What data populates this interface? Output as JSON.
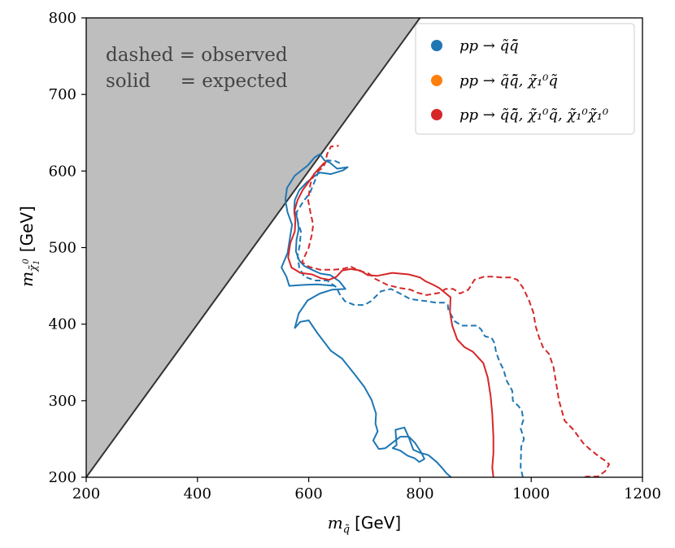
{
  "chart_data": {
    "type": "line",
    "x_axis": {
      "label_symbol": "m",
      "label_sub": "q̃",
      "label_unit": "[GeV]",
      "range": [
        200,
        1200
      ],
      "ticks": [
        200,
        400,
        600,
        800,
        1000,
        1200
      ],
      "tick_labels": [
        "200",
        "400",
        "600",
        "800",
        "1000",
        "1200"
      ]
    },
    "y_axis": {
      "label_symbol": "m",
      "label_sub": "χ̃",
      "label_sub_sub": "1",
      "label_sup": "0",
      "label_unit": "[GeV]",
      "range": [
        200,
        800
      ],
      "ticks": [
        200,
        300,
        400,
        500,
        600,
        700,
        800
      ],
      "tick_labels": [
        "200",
        "300",
        "400",
        "500",
        "600",
        "700",
        "800"
      ]
    },
    "excluded_region": {
      "description": "kinematically forbidden region above m_neutralino = m_squark line",
      "boundary": [
        [
          200,
          200
        ],
        [
          800,
          800
        ]
      ],
      "fill": "#bebebe",
      "edge": "#333333"
    },
    "annotations": [
      {
        "text": "dashed = observed"
      },
      {
        "text": "solid     = expected"
      }
    ],
    "colors": {
      "blue": "#1f77b4",
      "orange": "#ff7f0e",
      "red": "#d62728"
    },
    "legend": [
      {
        "label": "pp → q̃q̃̄",
        "color": "#1f77b4"
      },
      {
        "label": "pp → q̃q̃̄, χ̃₁⁰q̃",
        "color": "#ff7f0e"
      },
      {
        "label": "pp → q̃q̃̄, χ̃₁⁰q̃, χ̃₁⁰χ̃₁⁰",
        "color": "#d62728"
      }
    ],
    "series": [
      {
        "name": "blue solid (expected)",
        "color": "#1f77b4",
        "style": "solid",
        "points": [
          [
            648,
            450
          ],
          [
            615,
            452
          ],
          [
            585,
            451
          ],
          [
            565,
            450
          ],
          [
            560,
            462
          ],
          [
            551,
            474
          ],
          [
            562,
            493
          ],
          [
            566,
            511
          ],
          [
            570,
            530
          ],
          [
            562,
            546
          ],
          [
            558,
            562
          ],
          [
            561,
            578
          ],
          [
            575,
            594
          ],
          [
            598,
            607
          ],
          [
            611,
            618
          ],
          [
            620,
            622
          ],
          [
            628,
            614
          ],
          [
            638,
            611
          ],
          [
            651,
            603
          ],
          [
            670,
            605
          ],
          [
            662,
            601
          ],
          [
            640,
            596
          ],
          [
            620,
            598
          ],
          [
            610,
            593
          ],
          [
            596,
            585
          ],
          [
            583,
            575
          ],
          [
            575,
            562
          ],
          [
            574,
            549
          ],
          [
            580,
            537
          ],
          [
            582,
            524
          ],
          [
            578,
            510
          ],
          [
            577,
            495
          ],
          [
            583,
            483
          ],
          [
            592,
            476
          ],
          [
            606,
            471
          ],
          [
            621,
            466
          ],
          [
            639,
            464
          ],
          [
            655,
            456
          ],
          [
            666,
            446
          ],
          [
            642,
            445
          ],
          [
            620,
            440
          ],
          [
            598,
            431
          ],
          [
            582,
            414
          ],
          [
            575,
            395
          ],
          [
            585,
            403
          ],
          [
            600,
            405
          ],
          [
            616,
            388
          ],
          [
            640,
            365
          ],
          [
            660,
            355
          ],
          [
            683,
            334
          ],
          [
            700,
            318
          ],
          [
            713,
            301
          ],
          [
            721,
            283
          ],
          [
            720,
            270
          ],
          [
            724,
            260
          ],
          [
            716,
            248
          ],
          [
            726,
            237
          ],
          [
            738,
            238
          ],
          [
            754,
            247
          ],
          [
            765,
            253
          ],
          [
            780,
            253
          ],
          [
            791,
            245
          ],
          [
            801,
            234
          ],
          [
            808,
            224
          ],
          [
            799,
            220
          ],
          [
            790,
            225
          ],
          [
            778,
            228
          ],
          [
            764,
            235
          ],
          [
            751,
            238
          ],
          [
            758,
            242
          ],
          [
            756,
            262
          ],
          [
            772,
            265
          ],
          [
            780,
            252
          ],
          [
            788,
            236
          ],
          [
            800,
            232
          ],
          [
            815,
            229
          ],
          [
            830,
            220
          ],
          [
            840,
            212
          ],
          [
            848,
            205
          ],
          [
            856,
            200
          ]
        ]
      },
      {
        "name": "blue dashed (observed)",
        "color": "#1f77b4",
        "style": "dashed",
        "points": [
          [
            985,
            200
          ],
          [
            981,
            213
          ],
          [
            982,
            240
          ],
          [
            987,
            250
          ],
          [
            981,
            264
          ],
          [
            986,
            275
          ],
          [
            983,
            287
          ],
          [
            977,
            293
          ],
          [
            967,
            300
          ],
          [
            966,
            313
          ],
          [
            956,
            326
          ],
          [
            950,
            341
          ],
          [
            943,
            351
          ],
          [
            937,
            363
          ],
          [
            934,
            375
          ],
          [
            929,
            382
          ],
          [
            917,
            384
          ],
          [
            910,
            393
          ],
          [
            903,
            398
          ],
          [
            890,
            398
          ],
          [
            875,
            398
          ],
          [
            862,
            404
          ],
          [
            851,
            419
          ],
          [
            850,
            425
          ],
          [
            844,
            428
          ],
          [
            829,
            428
          ],
          [
            812,
            430
          ],
          [
            800,
            431
          ],
          [
            782,
            433
          ],
          [
            764,
            440
          ],
          [
            748,
            446
          ],
          [
            730,
            443
          ],
          [
            712,
            430
          ],
          [
            700,
            425
          ],
          [
            682,
            425
          ],
          [
            665,
            430
          ],
          [
            655,
            440
          ],
          [
            650,
            448
          ],
          [
            633,
            457
          ],
          [
            612,
            457
          ],
          [
            592,
            462
          ],
          [
            583,
            474
          ],
          [
            580,
            489
          ],
          [
            584,
            504
          ],
          [
            586,
            521
          ],
          [
            580,
            535
          ],
          [
            578,
            546
          ],
          [
            591,
            561
          ],
          [
            602,
            571
          ],
          [
            611,
            587
          ],
          [
            620,
            604
          ],
          [
            633,
            614
          ],
          [
            648,
            613
          ],
          [
            660,
            609
          ]
        ]
      },
      {
        "name": "red solid (expected)",
        "color": "#d62728",
        "style": "solid",
        "points": [
          [
            932,
            200
          ],
          [
            930,
            213
          ],
          [
            932,
            231
          ],
          [
            932,
            253
          ],
          [
            930,
            283
          ],
          [
            927,
            306
          ],
          [
            922,
            330
          ],
          [
            914,
            349
          ],
          [
            895,
            364
          ],
          [
            880,
            370
          ],
          [
            867,
            380
          ],
          [
            858,
            398
          ],
          [
            854,
            416
          ],
          [
            855,
            435
          ],
          [
            835,
            447
          ],
          [
            825,
            451
          ],
          [
            810,
            456
          ],
          [
            800,
            461
          ],
          [
            780,
            465
          ],
          [
            750,
            467
          ],
          [
            723,
            463
          ],
          [
            706,
            464
          ],
          [
            693,
            470
          ],
          [
            675,
            472
          ],
          [
            660,
            470
          ],
          [
            650,
            462
          ],
          [
            637,
            458
          ],
          [
            622,
            460
          ],
          [
            606,
            465
          ],
          [
            585,
            467
          ],
          [
            569,
            474
          ],
          [
            563,
            487
          ],
          [
            567,
            506
          ],
          [
            575,
            521
          ],
          [
            576,
            536
          ],
          [
            574,
            547
          ],
          [
            580,
            562
          ],
          [
            589,
            575
          ],
          [
            600,
            586
          ],
          [
            612,
            598
          ],
          [
            628,
            611
          ]
        ]
      },
      {
        "name": "red dashed (observed)",
        "color": "#d62728",
        "style": "dashed",
        "points": [
          [
            1096,
            200
          ],
          [
            1100,
            201
          ],
          [
            1120,
            201
          ],
          [
            1133,
            208
          ],
          [
            1140,
            217
          ],
          [
            1134,
            221
          ],
          [
            1122,
            227
          ],
          [
            1103,
            238
          ],
          [
            1093,
            245
          ],
          [
            1076,
            262
          ],
          [
            1060,
            274
          ],
          [
            1050,
            300
          ],
          [
            1045,
            322
          ],
          [
            1040,
            344
          ],
          [
            1032,
            361
          ],
          [
            1021,
            370
          ],
          [
            1014,
            383
          ],
          [
            1008,
            397
          ],
          [
            1004,
            415
          ],
          [
            996,
            431
          ],
          [
            985,
            448
          ],
          [
            975,
            458
          ],
          [
            963,
            461
          ],
          [
            946,
            461
          ],
          [
            932,
            462
          ],
          [
            915,
            462
          ],
          [
            898,
            458
          ],
          [
            887,
            445
          ],
          [
            872,
            440
          ],
          [
            860,
            446
          ],
          [
            846,
            446
          ],
          [
            835,
            441
          ],
          [
            812,
            438
          ],
          [
            796,
            441
          ],
          [
            783,
            445
          ],
          [
            765,
            447
          ],
          [
            742,
            451
          ],
          [
            720,
            459
          ],
          [
            708,
            466
          ],
          [
            690,
            470
          ],
          [
            676,
            475
          ],
          [
            660,
            472
          ],
          [
            643,
            471
          ],
          [
            621,
            471
          ],
          [
            600,
            475
          ],
          [
            588,
            481
          ],
          [
            600,
            500
          ],
          [
            606,
            518
          ],
          [
            608,
            530
          ],
          [
            603,
            546
          ],
          [
            599,
            562
          ],
          [
            603,
            583
          ],
          [
            610,
            597
          ],
          [
            625,
            604
          ],
          [
            630,
            611
          ],
          [
            633,
            622
          ],
          [
            640,
            632
          ],
          [
            654,
            633
          ]
        ]
      }
    ]
  }
}
